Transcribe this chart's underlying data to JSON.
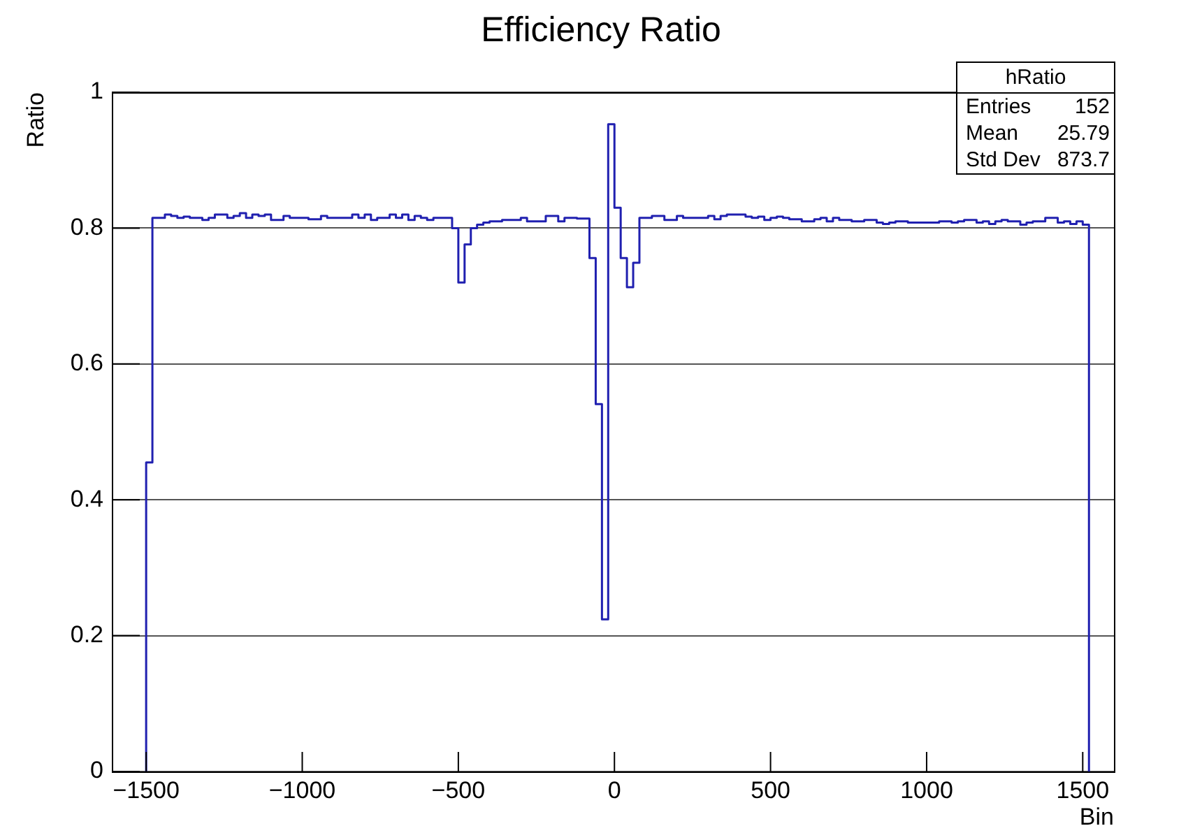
{
  "chart_data": {
    "type": "histogram",
    "title": "Efficiency Ratio",
    "xlabel": "Bin",
    "ylabel": "Ratio",
    "annotations": [
      "hRatio",
      "Entries 152",
      "Mean 25.79",
      "Std Dev 873.7"
    ],
    "color": "#2020b0",
    "bins": [
      -1500,
      -1480,
      -1460,
      -1440,
      -1420,
      -1400,
      -1380,
      -1360,
      -1340,
      -1320,
      -1300,
      -1280,
      -1260,
      -1240,
      -1220,
      -1200,
      -1180,
      -1160,
      -1140,
      -1120,
      -1100,
      -1080,
      -1060,
      -1040,
      -1020,
      -1000,
      -980,
      -960,
      -940,
      -920,
      -900,
      -880,
      -860,
      -840,
      -820,
      -800,
      -780,
      -760,
      -740,
      -720,
      -700,
      -680,
      -660,
      -640,
      -620,
      -600,
      -580,
      -560,
      -540,
      -520,
      -500,
      -480,
      -460,
      -440,
      -420,
      -400,
      -380,
      -360,
      -340,
      -320,
      -300,
      -280,
      -260,
      -240,
      -220,
      -200,
      -180,
      -160,
      -140,
      -120,
      -100,
      -80,
      -60,
      -40,
      -20,
      0,
      20,
      40,
      60,
      80,
      100,
      120,
      140,
      160,
      180,
      200,
      220,
      240,
      260,
      280,
      300,
      320,
      340,
      360,
      380,
      400,
      420,
      440,
      460,
      480,
      500,
      520,
      540,
      560,
      580,
      600,
      620,
      640,
      660,
      680,
      700,
      720,
      740,
      760,
      780,
      800,
      820,
      840,
      860,
      880,
      900,
      920,
      940,
      960,
      980,
      1000,
      1020,
      1040,
      1060,
      1080,
      1100,
      1120,
      1140,
      1160,
      1180,
      1200,
      1220,
      1240,
      1260,
      1280,
      1300,
      1320,
      1340,
      1360,
      1380,
      1400,
      1420,
      1440,
      1460,
      1480,
      1500,
      1520
    ],
    "values": [
      0.455,
      0.815,
      0.815,
      0.82,
      0.818,
      0.815,
      0.817,
      0.815,
      0.815,
      0.812,
      0.815,
      0.82,
      0.82,
      0.815,
      0.818,
      0.822,
      0.815,
      0.82,
      0.818,
      0.82,
      0.812,
      0.812,
      0.818,
      0.815,
      0.815,
      0.815,
      0.813,
      0.813,
      0.818,
      0.815,
      0.815,
      0.815,
      0.815,
      0.82,
      0.815,
      0.82,
      0.812,
      0.815,
      0.815,
      0.82,
      0.815,
      0.82,
      0.812,
      0.818,
      0.815,
      0.812,
      0.815,
      0.815,
      0.815,
      0.8,
      0.72,
      0.776,
      0.8,
      0.805,
      0.808,
      0.81,
      0.81,
      0.812,
      0.812,
      0.812,
      0.815,
      0.81,
      0.81,
      0.81,
      0.818,
      0.818,
      0.81,
      0.815,
      0.815,
      0.814,
      0.814,
      0.756,
      0.541,
      0.224,
      0.953,
      0.83,
      0.756,
      0.713,
      0.749,
      0.815,
      0.815,
      0.818,
      0.818,
      0.812,
      0.812,
      0.818,
      0.815,
      0.815,
      0.815,
      0.815,
      0.818,
      0.813,
      0.818,
      0.82,
      0.82,
      0.82,
      0.817,
      0.815,
      0.817,
      0.812,
      0.815,
      0.817,
      0.815,
      0.813,
      0.813,
      0.81,
      0.81,
      0.813,
      0.815,
      0.81,
      0.815,
      0.812,
      0.812,
      0.81,
      0.81,
      0.812,
      0.812,
      0.808,
      0.806,
      0.808,
      0.81,
      0.81,
      0.808,
      0.808,
      0.808,
      0.808,
      0.808,
      0.81,
      0.81,
      0.808,
      0.81,
      0.812,
      0.812,
      0.808,
      0.81,
      0.806,
      0.81,
      0.812,
      0.81,
      0.81,
      0.805,
      0.808,
      0.81,
      0.81,
      0.815,
      0.815,
      0.808,
      0.81,
      0.806,
      0.81,
      0.805
    ],
    "xlim": [
      -1610,
      1600
    ],
    "xticks": [
      -1500,
      -1000,
      -500,
      0,
      500,
      1000,
      1500
    ],
    "ylim": [
      0,
      1
    ],
    "yticks": [
      0,
      0.2,
      0.4,
      0.6,
      0.8,
      1
    ],
    "grid": "y",
    "legend": false
  }
}
